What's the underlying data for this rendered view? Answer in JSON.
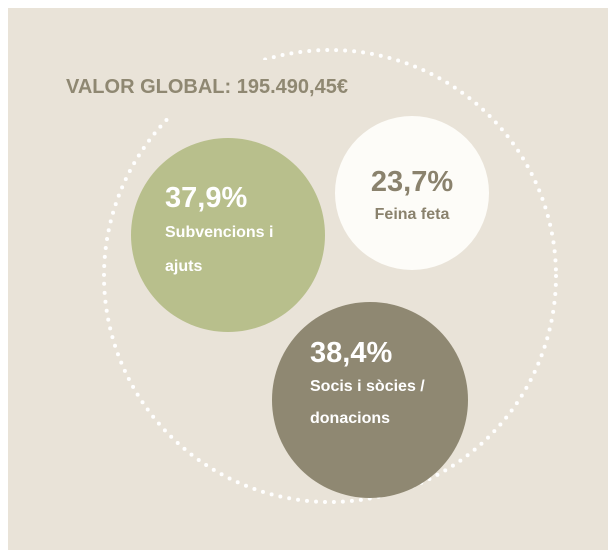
{
  "chart_data": {
    "type": "bubble",
    "title": "VALOR GLOBAL: 195.490,45€",
    "categories": [
      "Subvencions i ajuts",
      "Feina feta",
      "Socis i sòcies / donacions"
    ],
    "values": [
      37.9,
      23.7,
      38.4
    ],
    "value_labels": [
      "37,9%",
      "23,7%",
      "38,4%"
    ],
    "colors": [
      "#b8bf8c",
      "#fdfcf8",
      "#8f8872"
    ],
    "label_colors": [
      "#ffffff",
      "#8a826d",
      "#ffffff"
    ]
  }
}
